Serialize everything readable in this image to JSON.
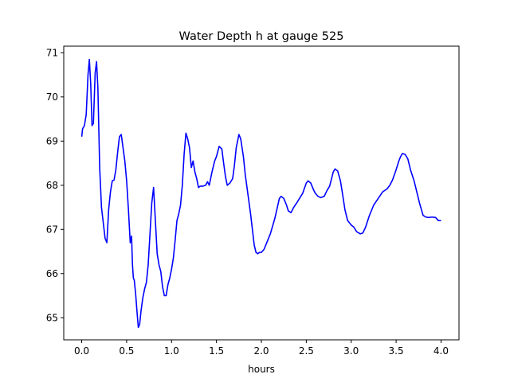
{
  "chart_data": {
    "type": "line",
    "title": "Water Depth h at gauge 525",
    "xlabel": "hours",
    "ylabel": "",
    "xlim": [
      -0.2,
      4.2
    ],
    "ylim": [
      64.5,
      71.15
    ],
    "xticks": [
      0.0,
      0.5,
      1.0,
      1.5,
      2.0,
      2.5,
      3.0,
      3.5,
      4.0
    ],
    "xtick_labels": [
      "0.0",
      "0.5",
      "1.0",
      "1.5",
      "2.0",
      "2.5",
      "3.0",
      "3.5",
      "4.0"
    ],
    "yticks": [
      65,
      66,
      67,
      68,
      69,
      70,
      71
    ],
    "ytick_labels": [
      "65",
      "66",
      "67",
      "68",
      "69",
      "70",
      "71"
    ],
    "grid": false,
    "legend": "none",
    "series": [
      {
        "color": "#0000ff",
        "x": [
          0.0,
          0.01,
          0.03,
          0.05,
          0.07,
          0.085,
          0.1,
          0.115,
          0.13,
          0.15,
          0.165,
          0.18,
          0.2,
          0.22,
          0.24,
          0.26,
          0.28,
          0.3,
          0.32,
          0.34,
          0.36,
          0.38,
          0.4,
          0.42,
          0.44,
          0.46,
          0.48,
          0.5,
          0.52,
          0.54,
          0.555,
          0.565,
          0.575,
          0.585,
          0.6,
          0.615,
          0.63,
          0.645,
          0.66,
          0.68,
          0.7,
          0.72,
          0.74,
          0.76,
          0.78,
          0.8,
          0.82,
          0.84,
          0.86,
          0.88,
          0.9,
          0.92,
          0.94,
          0.96,
          0.98,
          1.0,
          1.02,
          1.04,
          1.06,
          1.08,
          1.1,
          1.12,
          1.14,
          1.16,
          1.18,
          1.2,
          1.22,
          1.24,
          1.26,
          1.28,
          1.3,
          1.32,
          1.35,
          1.38,
          1.4,
          1.42,
          1.45,
          1.48,
          1.5,
          1.53,
          1.56,
          1.58,
          1.6,
          1.62,
          1.65,
          1.68,
          1.7,
          1.72,
          1.75,
          1.77,
          1.8,
          1.82,
          1.85,
          1.88,
          1.9,
          1.92,
          1.94,
          1.96,
          1.98,
          2.0,
          2.03,
          2.06,
          2.1,
          2.15,
          2.2,
          2.22,
          2.25,
          2.28,
          2.3,
          2.33,
          2.36,
          2.4,
          2.43,
          2.46,
          2.5,
          2.52,
          2.55,
          2.58,
          2.6,
          2.63,
          2.66,
          2.7,
          2.73,
          2.76,
          2.8,
          2.82,
          2.85,
          2.88,
          2.9,
          2.93,
          2.96,
          3.0,
          3.03,
          3.06,
          3.1,
          3.13,
          3.16,
          3.2,
          3.25,
          3.3,
          3.35,
          3.4,
          3.43,
          3.46,
          3.5,
          3.53,
          3.55,
          3.57,
          3.6,
          3.63,
          3.66,
          3.7,
          3.73,
          3.76,
          3.8,
          3.83,
          3.86,
          3.9,
          3.94,
          3.97,
          4.0
        ],
        "y": [
          69.1,
          69.28,
          69.35,
          69.6,
          70.5,
          70.85,
          70.3,
          69.35,
          69.4,
          70.55,
          70.8,
          70.2,
          68.4,
          67.5,
          67.15,
          66.8,
          66.7,
          67.45,
          67.85,
          68.1,
          68.12,
          68.35,
          68.75,
          69.1,
          69.15,
          68.85,
          68.55,
          68.1,
          67.45,
          66.7,
          66.85,
          66.2,
          65.9,
          65.85,
          65.55,
          65.15,
          64.78,
          64.85,
          65.15,
          65.45,
          65.65,
          65.8,
          66.2,
          66.9,
          67.6,
          67.95,
          67.2,
          66.45,
          66.2,
          66.05,
          65.7,
          65.5,
          65.5,
          65.75,
          65.9,
          66.1,
          66.35,
          66.75,
          67.2,
          67.35,
          67.55,
          68.0,
          68.7,
          69.18,
          69.05,
          68.85,
          68.4,
          68.55,
          68.3,
          68.15,
          67.95,
          67.98,
          67.98,
          68.0,
          68.08,
          68.0,
          68.3,
          68.55,
          68.65,
          68.88,
          68.82,
          68.5,
          68.2,
          68.0,
          68.05,
          68.15,
          68.45,
          68.85,
          69.15,
          69.05,
          68.65,
          68.25,
          67.8,
          67.35,
          67.0,
          66.65,
          66.48,
          66.45,
          66.48,
          66.48,
          66.55,
          66.7,
          66.9,
          67.25,
          67.7,
          67.75,
          67.7,
          67.55,
          67.42,
          67.38,
          67.5,
          67.62,
          67.72,
          67.82,
          68.05,
          68.1,
          68.05,
          67.9,
          67.82,
          67.75,
          67.72,
          67.75,
          67.88,
          67.98,
          68.3,
          68.37,
          68.32,
          68.1,
          67.85,
          67.45,
          67.2,
          67.1,
          67.05,
          66.95,
          66.9,
          66.92,
          67.05,
          67.3,
          67.55,
          67.7,
          67.85,
          67.92,
          68.0,
          68.12,
          68.35,
          68.55,
          68.65,
          68.72,
          68.7,
          68.6,
          68.35,
          68.1,
          67.85,
          67.6,
          67.32,
          67.28,
          67.27,
          67.28,
          67.27,
          67.2,
          67.2
        ]
      }
    ]
  }
}
